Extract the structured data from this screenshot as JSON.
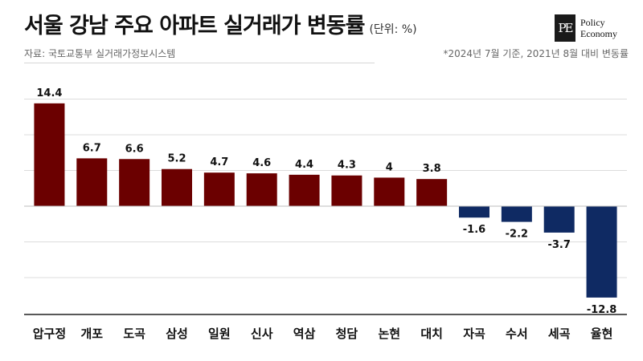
{
  "header": {
    "title": "서울 강남 주요 아파트 실거래가 변동률",
    "unit": "(단위: %)",
    "source": "자료: 국토교통부 실거래가정보시스템",
    "note": "*2024년 7월 기준, 2021년 8월 대비 변동률"
  },
  "logo": {
    "mark": "PE",
    "line1": "Policy",
    "line2": "Economy"
  },
  "colors": {
    "positive": "#6b0000",
    "negative": "#0f2a63",
    "grid": "#dcdcdc"
  },
  "chart_data": {
    "type": "bar",
    "title": "서울 강남 주요 아파트 실거래가 변동률",
    "xlabel": "",
    "ylabel": "",
    "ylim": [
      -15,
      17
    ],
    "grid": true,
    "categories": [
      "압구정",
      "개포",
      "도곡",
      "삼성",
      "일원",
      "신사",
      "역삼",
      "청담",
      "논현",
      "대치",
      "자곡",
      "수서",
      "세곡",
      "율현"
    ],
    "values": [
      14.4,
      6.7,
      6.6,
      5.2,
      4.7,
      4.6,
      4.4,
      4.3,
      4,
      3.8,
      -1.6,
      -2.2,
      -3.7,
      -12.8
    ],
    "value_labels": [
      "14.4",
      "6.7",
      "6.6",
      "5.2",
      "4.7",
      "4.6",
      "4.4",
      "4.3",
      "4",
      "3.8",
      "-1.6",
      "-2.2",
      "-3.7",
      "-12.8"
    ]
  }
}
